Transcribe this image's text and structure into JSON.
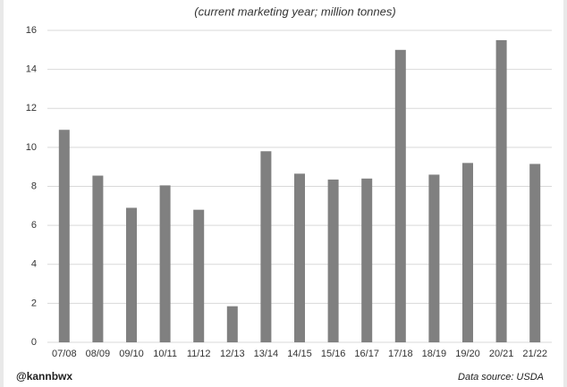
{
  "chart_data": {
    "type": "bar",
    "subtitle": "(current marketing year; million tonnes)",
    "categories": [
      "07/08",
      "08/09",
      "09/10",
      "10/11",
      "11/12",
      "12/13",
      "13/14",
      "14/15",
      "15/16",
      "16/17",
      "17/18",
      "18/19",
      "19/20",
      "20/21",
      "21/22"
    ],
    "values": [
      10.9,
      8.55,
      6.9,
      8.05,
      6.8,
      1.85,
      9.8,
      8.65,
      8.35,
      8.4,
      15.0,
      8.6,
      9.2,
      15.5,
      9.15
    ],
    "color": "#808080",
    "ylim": [
      0,
      16
    ],
    "yticks": [
      0,
      2,
      4,
      6,
      8,
      10,
      12,
      14,
      16
    ],
    "grid": true,
    "credit": "@kannbwx",
    "source": "Data source: USDA"
  }
}
